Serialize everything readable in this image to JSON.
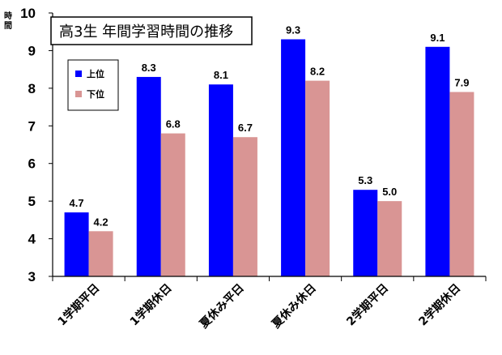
{
  "chart_data": {
    "type": "bar",
    "title": "高3生 年間学習時間の推移",
    "ylabel": "時間",
    "xlabel": "",
    "ylim": [
      3,
      10
    ],
    "yticks": [
      3,
      4,
      5,
      6,
      7,
      8,
      9,
      10
    ],
    "grid": false,
    "legend_position": "top-left",
    "categories": [
      "1学期平日",
      "1学期休日",
      "夏休み平日",
      "夏休み休日",
      "2学期平日",
      "2学期休日"
    ],
    "series": [
      {
        "name": "上位",
        "color": "#0000ff",
        "values": [
          4.7,
          8.3,
          8.1,
          9.3,
          5.3,
          9.1
        ]
      },
      {
        "name": "下位",
        "color": "#d99594",
        "values": [
          4.2,
          6.8,
          6.7,
          8.2,
          5.0,
          7.9
        ]
      }
    ]
  }
}
